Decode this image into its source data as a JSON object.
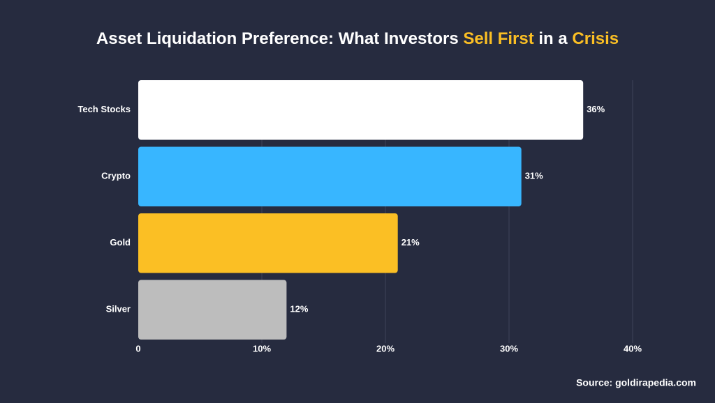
{
  "chart_data": {
    "type": "bar",
    "orientation": "horizontal",
    "title_parts": [
      {
        "text": "Asset Liquidation Preference: What Investors ",
        "color": "#ffffff"
      },
      {
        "text": "Sell First",
        "color": "#fbbf24"
      },
      {
        "text": " in a ",
        "color": "#ffffff"
      },
      {
        "text": "Crisis",
        "color": "#fbbf24"
      }
    ],
    "categories": [
      "Tech Stocks",
      "Crypto",
      "Gold",
      "Silver"
    ],
    "values": [
      36,
      31,
      21,
      12
    ],
    "value_labels": [
      "36%",
      "31%",
      "21%",
      "12%"
    ],
    "colors": [
      "#ffffff",
      "#38b6ff",
      "#fbbf24",
      "#bdbdbd"
    ],
    "xlim": [
      0,
      40
    ],
    "xticks": [
      0,
      {
        "value": 10,
        "label": "10%"
      },
      {
        "value": 20,
        "label": "20%"
      },
      {
        "value": 30,
        "label": "30%"
      },
      {
        "value": 40,
        "label": "40%"
      }
    ],
    "grid": true,
    "source": "Source: goldirapedia.com"
  }
}
